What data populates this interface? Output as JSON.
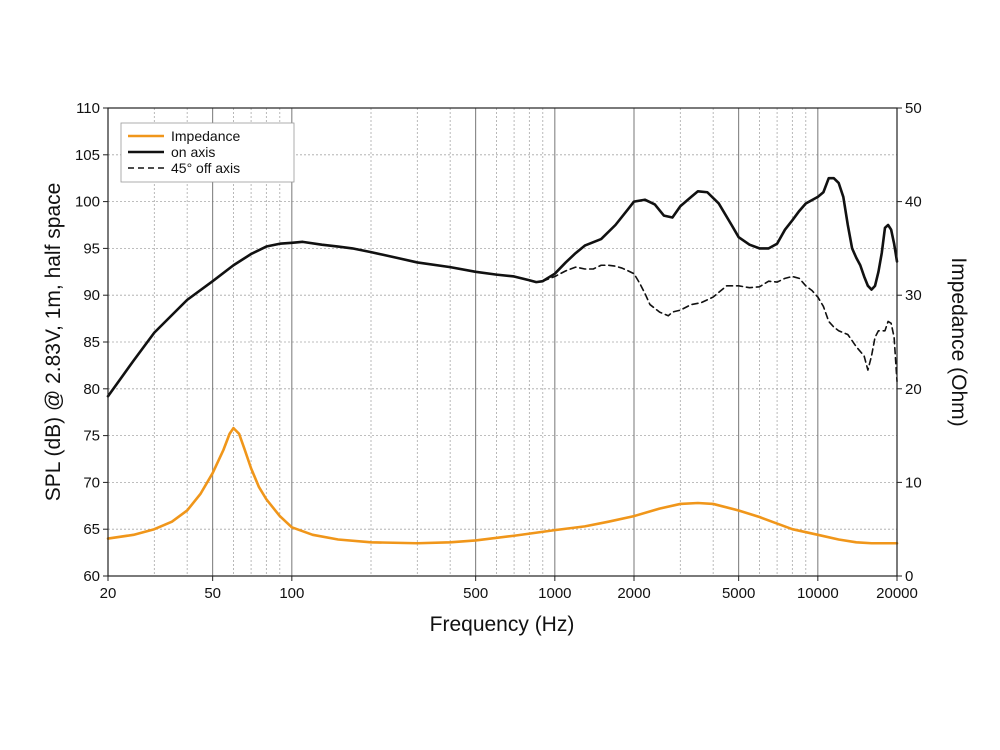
{
  "chart_data": {
    "type": "line",
    "title": "",
    "xlabel": "Frequency (Hz)",
    "ylabel": "SPL (dB) @ 2.83V, 1m, half space",
    "y2label": "Impedance (Ohm)",
    "x_scale": "log",
    "xlim": [
      20,
      20000
    ],
    "ylim": [
      60,
      110
    ],
    "y2lim": [
      0,
      50
    ],
    "grid": true,
    "legend_position": "top-left",
    "x_ticks": [
      "20",
      "50",
      "100",
      "500",
      "1000",
      "2000",
      "5000",
      "10000",
      "20000"
    ],
    "x_tick_values": [
      20,
      50,
      100,
      500,
      1000,
      2000,
      5000,
      10000,
      20000
    ],
    "y_ticks": [
      "60",
      "65",
      "70",
      "75",
      "80",
      "85",
      "90",
      "95",
      "100",
      "105",
      "110"
    ],
    "y_tick_values": [
      60,
      65,
      70,
      75,
      80,
      85,
      90,
      95,
      100,
      105,
      110
    ],
    "y2_ticks": [
      "0",
      "10",
      "20",
      "30",
      "40",
      "50"
    ],
    "y2_tick_values": [
      0,
      10,
      20,
      30,
      40,
      50
    ],
    "series": [
      {
        "name": "Impedance",
        "axis": "right",
        "color": "#f0961a",
        "style": "solid",
        "points": [
          [
            20,
            4.0
          ],
          [
            25,
            4.4
          ],
          [
            30,
            5.0
          ],
          [
            35,
            5.8
          ],
          [
            40,
            7.0
          ],
          [
            45,
            8.8
          ],
          [
            50,
            11.0
          ],
          [
            55,
            13.5
          ],
          [
            58,
            15.2
          ],
          [
            60,
            15.8
          ],
          [
            63,
            15.2
          ],
          [
            66,
            13.6
          ],
          [
            70,
            11.5
          ],
          [
            75,
            9.5
          ],
          [
            80,
            8.2
          ],
          [
            90,
            6.4
          ],
          [
            100,
            5.2
          ],
          [
            120,
            4.4
          ],
          [
            150,
            3.9
          ],
          [
            200,
            3.6
          ],
          [
            300,
            3.5
          ],
          [
            400,
            3.6
          ],
          [
            500,
            3.8
          ],
          [
            700,
            4.3
          ],
          [
            1000,
            4.9
          ],
          [
            1300,
            5.3
          ],
          [
            1600,
            5.8
          ],
          [
            2000,
            6.4
          ],
          [
            2500,
            7.2
          ],
          [
            3000,
            7.7
          ],
          [
            3500,
            7.8
          ],
          [
            4000,
            7.7
          ],
          [
            5000,
            7.0
          ],
          [
            6000,
            6.3
          ],
          [
            7000,
            5.6
          ],
          [
            8000,
            5.0
          ],
          [
            10000,
            4.4
          ],
          [
            12000,
            3.9
          ],
          [
            14000,
            3.6
          ],
          [
            16000,
            3.5
          ],
          [
            20000,
            3.5
          ]
        ]
      },
      {
        "name": "on axis",
        "axis": "left",
        "color": "#111111",
        "style": "solid",
        "points": [
          [
            20,
            79.2
          ],
          [
            25,
            83.0
          ],
          [
            30,
            86.0
          ],
          [
            40,
            89.5
          ],
          [
            50,
            91.5
          ],
          [
            60,
            93.2
          ],
          [
            70,
            94.4
          ],
          [
            80,
            95.2
          ],
          [
            90,
            95.5
          ],
          [
            100,
            95.6
          ],
          [
            110,
            95.7
          ],
          [
            130,
            95.4
          ],
          [
            150,
            95.2
          ],
          [
            170,
            95.0
          ],
          [
            200,
            94.6
          ],
          [
            250,
            94.0
          ],
          [
            300,
            93.5
          ],
          [
            400,
            93.0
          ],
          [
            500,
            92.5
          ],
          [
            600,
            92.2
          ],
          [
            700,
            92.0
          ],
          [
            800,
            91.6
          ],
          [
            850,
            91.4
          ],
          [
            900,
            91.5
          ],
          [
            1000,
            92.3
          ],
          [
            1100,
            93.5
          ],
          [
            1200,
            94.5
          ],
          [
            1300,
            95.3
          ],
          [
            1500,
            96.0
          ],
          [
            1700,
            97.5
          ],
          [
            1900,
            99.2
          ],
          [
            2000,
            100.0
          ],
          [
            2200,
            100.2
          ],
          [
            2400,
            99.7
          ],
          [
            2600,
            98.5
          ],
          [
            2800,
            98.3
          ],
          [
            3000,
            99.5
          ],
          [
            3300,
            100.5
          ],
          [
            3500,
            101.1
          ],
          [
            3800,
            101.0
          ],
          [
            4200,
            99.8
          ],
          [
            4700,
            97.5
          ],
          [
            5000,
            96.2
          ],
          [
            5500,
            95.4
          ],
          [
            6000,
            95.0
          ],
          [
            6500,
            95.0
          ],
          [
            7000,
            95.5
          ],
          [
            7500,
            97.0
          ],
          [
            8000,
            98.0
          ],
          [
            8500,
            99.0
          ],
          [
            9000,
            99.8
          ],
          [
            10000,
            100.5
          ],
          [
            10500,
            101.0
          ],
          [
            11000,
            102.5
          ],
          [
            11500,
            102.5
          ],
          [
            12000,
            102.0
          ],
          [
            12500,
            100.5
          ],
          [
            13000,
            97.5
          ],
          [
            13500,
            95.0
          ],
          [
            14000,
            94.0
          ],
          [
            14500,
            93.2
          ],
          [
            15000,
            92.0
          ],
          [
            15500,
            91.0
          ],
          [
            16000,
            90.6
          ],
          [
            16500,
            91.0
          ],
          [
            17000,
            92.5
          ],
          [
            17500,
            94.5
          ],
          [
            18000,
            97.2
          ],
          [
            18500,
            97.5
          ],
          [
            19000,
            97.0
          ],
          [
            19500,
            95.5
          ],
          [
            20000,
            93.6
          ]
        ]
      },
      {
        "name": "45° off axis",
        "axis": "left",
        "color": "#111111",
        "style": "dashed",
        "points": [
          [
            900,
            91.5
          ],
          [
            1000,
            92.0
          ],
          [
            1100,
            92.6
          ],
          [
            1200,
            93.0
          ],
          [
            1300,
            92.8
          ],
          [
            1400,
            92.8
          ],
          [
            1500,
            93.2
          ],
          [
            1600,
            93.2
          ],
          [
            1700,
            93.1
          ],
          [
            1800,
            92.9
          ],
          [
            1900,
            92.6
          ],
          [
            2000,
            92.3
          ],
          [
            2100,
            91.3
          ],
          [
            2200,
            90.2
          ],
          [
            2300,
            89.0
          ],
          [
            2500,
            88.2
          ],
          [
            2700,
            87.8
          ],
          [
            2800,
            88.2
          ],
          [
            3000,
            88.4
          ],
          [
            3300,
            89.0
          ],
          [
            3600,
            89.2
          ],
          [
            4000,
            89.8
          ],
          [
            4500,
            91.0
          ],
          [
            5000,
            91.0
          ],
          [
            5500,
            90.8
          ],
          [
            6000,
            90.9
          ],
          [
            6500,
            91.5
          ],
          [
            7000,
            91.4
          ],
          [
            7500,
            91.8
          ],
          [
            8000,
            92.0
          ],
          [
            8500,
            91.8
          ],
          [
            9000,
            91.0
          ],
          [
            9500,
            90.5
          ],
          [
            10000,
            89.8
          ],
          [
            10500,
            88.8
          ],
          [
            11000,
            87.2
          ],
          [
            11500,
            86.6
          ],
          [
            12000,
            86.2
          ],
          [
            13000,
            85.8
          ],
          [
            14000,
            84.5
          ],
          [
            15000,
            83.5
          ],
          [
            15500,
            82.0
          ],
          [
            16000,
            83.5
          ],
          [
            16500,
            85.5
          ],
          [
            17000,
            86.2
          ],
          [
            18000,
            86.2
          ],
          [
            18500,
            87.2
          ],
          [
            19000,
            87.0
          ],
          [
            19500,
            85.5
          ],
          [
            20000,
            80.8
          ]
        ]
      }
    ]
  }
}
